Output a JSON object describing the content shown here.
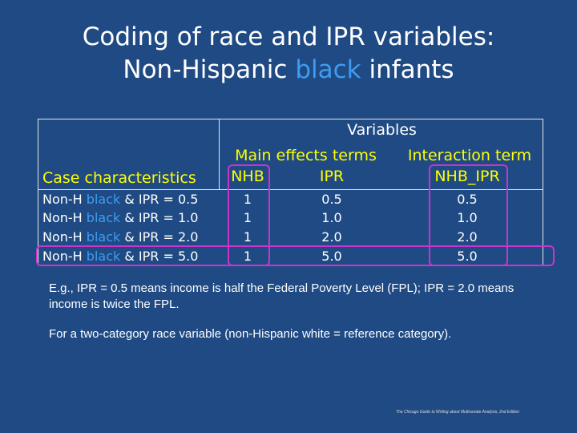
{
  "title": {
    "line1": "Coding of race and IPR variables:",
    "line2_prefix": "Non-Hispanic ",
    "line2_highlight": "black",
    "line2_suffix": " infants"
  },
  "table": {
    "header": {
      "variables": "Variables",
      "main_effects": "Main effects terms",
      "interaction": "Interaction term",
      "case_characteristics": "Case characteristics",
      "col_nhb": "NHB",
      "col_ipr": "IPR",
      "col_nhb_ipr": "NHB_IPR"
    },
    "rows": [
      {
        "prefix": "Non-H ",
        "black": "black",
        "suffix": " & IPR = 0.5",
        "nhb": "1",
        "ipr": "0.5",
        "nhb_ipr": "0.5"
      },
      {
        "prefix": "Non-H ",
        "black": "black",
        "suffix": " & IPR = 1.0",
        "nhb": "1",
        "ipr": "1.0",
        "nhb_ipr": "1.0"
      },
      {
        "prefix": "Non-H ",
        "black": "black",
        "suffix": " & IPR = 2.0",
        "nhb": "1",
        "ipr": "2.0",
        "nhb_ipr": "2.0"
      },
      {
        "prefix": "Non-H ",
        "black": "black",
        "suffix": " & IPR = 5.0",
        "nhb": "1",
        "ipr": "5.0",
        "nhb_ipr": "5.0"
      }
    ]
  },
  "notes": {
    "note1": "E.g., IPR = 0.5 means income is half the Federal Poverty Level (FPL); IPR = 2.0 means income is twice the FPL.",
    "note2": "For a two-category race variable (non-Hispanic white = reference category)."
  },
  "footer": "The Chicago Guide to Writing about Multivariate Analysis, 2nd Edition",
  "colors": {
    "background": "#1f4a84",
    "accent_blue": "#3d9df0",
    "yellow": "#ffff00",
    "highlight": "#cc33cc"
  }
}
